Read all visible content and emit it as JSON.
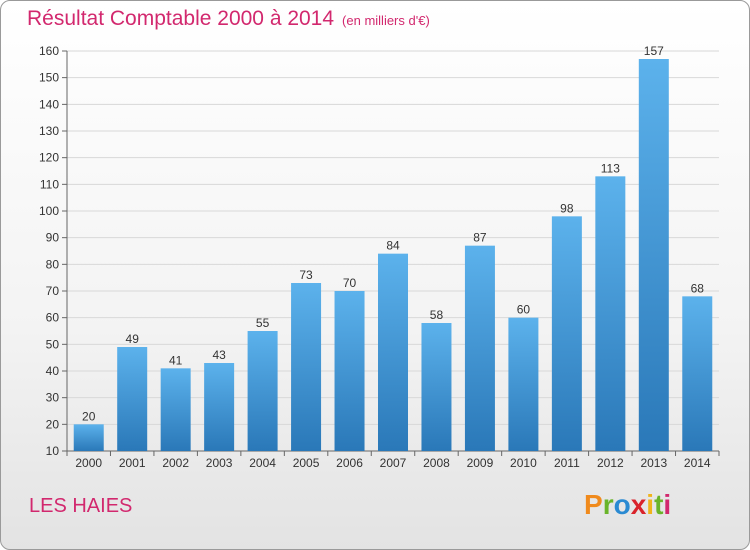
{
  "title": "Résultat Comptable 2000 à 2014",
  "subtitle": "(en milliers d'€)",
  "commune": "LES HAIES",
  "logo": {
    "text": "Proxiti",
    "letters": [
      "P",
      "r",
      "o",
      "x",
      "i",
      "t",
      "i"
    ],
    "colors": [
      "#f08a1c",
      "#6ab42a",
      "#2a8ad2",
      "#d9232b",
      "#f0b41c",
      "#6ab42a",
      "#d2286e"
    ]
  },
  "colors": {
    "bar": "#3d97d9",
    "bar_light": "#5cb2ec",
    "bar_dark": "#2a78b8",
    "title": "#d2286e",
    "grid": "#d8d8d8"
  },
  "chart_data": {
    "type": "bar",
    "title": "Résultat Comptable 2000 à 2014",
    "categories": [
      "2000",
      "2001",
      "2002",
      "2003",
      "2004",
      "2005",
      "2006",
      "2007",
      "2008",
      "2009",
      "2010",
      "2011",
      "2012",
      "2013",
      "2014"
    ],
    "values": [
      20,
      49,
      41,
      43,
      55,
      73,
      70,
      84,
      58,
      87,
      60,
      98,
      113,
      157,
      68
    ],
    "ylim": [
      10,
      160
    ],
    "yticks": [
      10,
      20,
      30,
      40,
      50,
      60,
      70,
      80,
      90,
      100,
      110,
      120,
      130,
      140,
      150,
      160
    ],
    "grid": true
  }
}
